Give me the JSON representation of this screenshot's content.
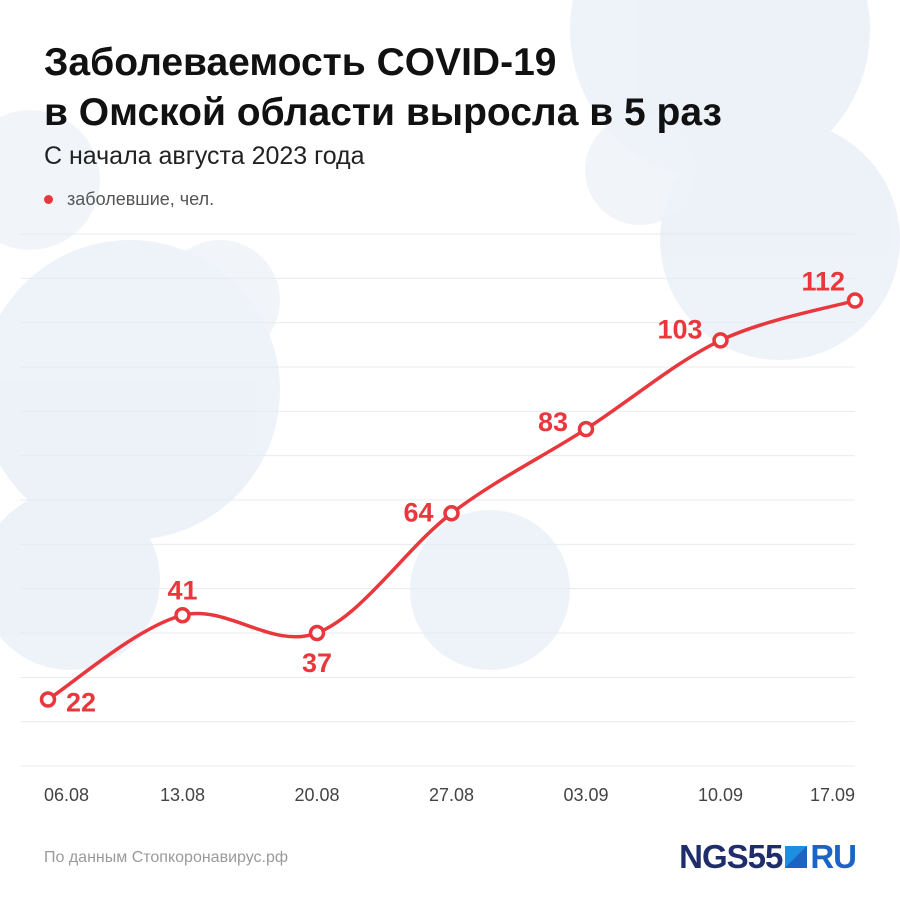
{
  "title_line1": "Заболеваемость COVID-19",
  "title_line2": "в Омской области выросла в 5 раз",
  "subtitle": "С начала августа 2023 года",
  "legend_label": "заболевшие, чел.",
  "source": "По данным Стопкоронавирус.рф",
  "logo": {
    "ngs": "NGS55",
    "ru": "RU"
  },
  "colors": {
    "line": "#e8383d",
    "grid": "#e8ebef",
    "axis_text": "#444444",
    "logo_dark": "#1f2d6b",
    "logo_blue": "#1b63c4"
  },
  "chart_data": {
    "type": "line",
    "title": "Заболеваемость COVID-19 в Омской области выросла в 5 раз",
    "subtitle": "С начала августа 2023 года",
    "categories": [
      "06.08",
      "13.08",
      "20.08",
      "27.08",
      "03.09",
      "10.09",
      "17.09"
    ],
    "series": [
      {
        "name": "заболевшие, чел.",
        "values": [
          22,
          41,
          37,
          64,
          83,
          103,
          112
        ]
      }
    ],
    "ylim": [
      7,
      127
    ],
    "grid": true,
    "legend": "top-left",
    "data_labels": true
  }
}
